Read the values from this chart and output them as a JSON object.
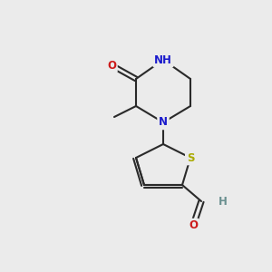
{
  "background_color": "#ebebeb",
  "bond_color": "#2a2a2a",
  "bond_width": 1.5,
  "atom_colors": {
    "C": "#2a2a2a",
    "N": "#1a1acc",
    "O": "#cc1a1a",
    "S": "#aaaa00",
    "H": "#6a9090"
  },
  "font_size": 8.5,
  "figsize": [
    3.0,
    3.0
  ],
  "dpi": 100,
  "xlim": [
    0,
    10
  ],
  "ylim": [
    0,
    10
  ]
}
